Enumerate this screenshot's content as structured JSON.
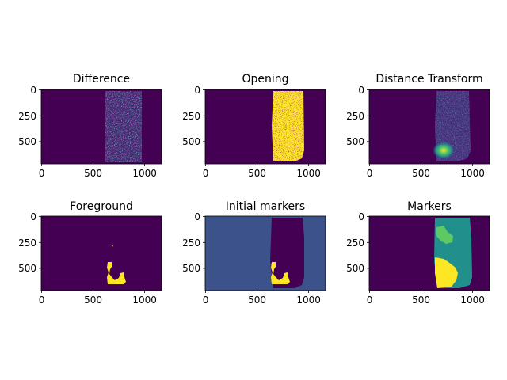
{
  "figure": {
    "background": "#ffffff",
    "colormap": "viridis",
    "colors": {
      "dark": "#440154",
      "navy": "#3b528b",
      "teal": "#21908d",
      "green": "#5ec962",
      "yellow": "#fde725"
    }
  },
  "chart_data": [
    {
      "type": "heatmap",
      "title": "Difference",
      "xlim": [
        0,
        1170
      ],
      "ylim": [
        0,
        720
      ],
      "xticks": [
        "0",
        "500",
        "1000"
      ],
      "yticks": [
        "0",
        "250",
        "500"
      ],
      "description": "mostly dark background with a speckled rectangular region of low intensity values"
    },
    {
      "type": "heatmap",
      "title": "Opening",
      "xlim": [
        0,
        1170
      ],
      "ylim": [
        0,
        720
      ],
      "xticks": [
        "0",
        "500",
        "1000"
      ],
      "yticks": [
        "0",
        "250",
        "500"
      ],
      "description": "binary mask: yellow rectangular object region with dark speckles on dark background"
    },
    {
      "type": "heatmap",
      "title": "Distance Transform",
      "xlim": [
        0,
        1170
      ],
      "ylim": [
        0,
        720
      ],
      "xticks": [
        "0",
        "500",
        "1000"
      ],
      "yticks": [
        "0",
        "250",
        "500"
      ],
      "description": "dark background, faint object region, bright peak near lower-left of object"
    },
    {
      "type": "heatmap",
      "title": "Foreground",
      "xlim": [
        0,
        1170
      ],
      "ylim": [
        0,
        720
      ],
      "xticks": [
        "0",
        "500",
        "1000"
      ],
      "yticks": [
        "0",
        "250",
        "500"
      ],
      "description": "binary: small yellow blob near lower-left of object region on dark background"
    },
    {
      "type": "heatmap",
      "title": "Initial markers",
      "xlim": [
        0,
        1170
      ],
      "ylim": [
        0,
        720
      ],
      "xticks": [
        "0",
        "500",
        "1000"
      ],
      "yticks": [
        "0",
        "250",
        "500"
      ],
      "description": "navy background label, dark unknown region, yellow foreground marker"
    },
    {
      "type": "heatmap",
      "title": "Markers",
      "xlim": [
        0,
        1170
      ],
      "ylim": [
        0,
        720
      ],
      "xticks": [
        "0",
        "500",
        "1000"
      ],
      "yticks": [
        "0",
        "250",
        "500"
      ],
      "description": "watershed labels: dark background, teal object, green upper patch, yellow lower-left patch"
    }
  ]
}
